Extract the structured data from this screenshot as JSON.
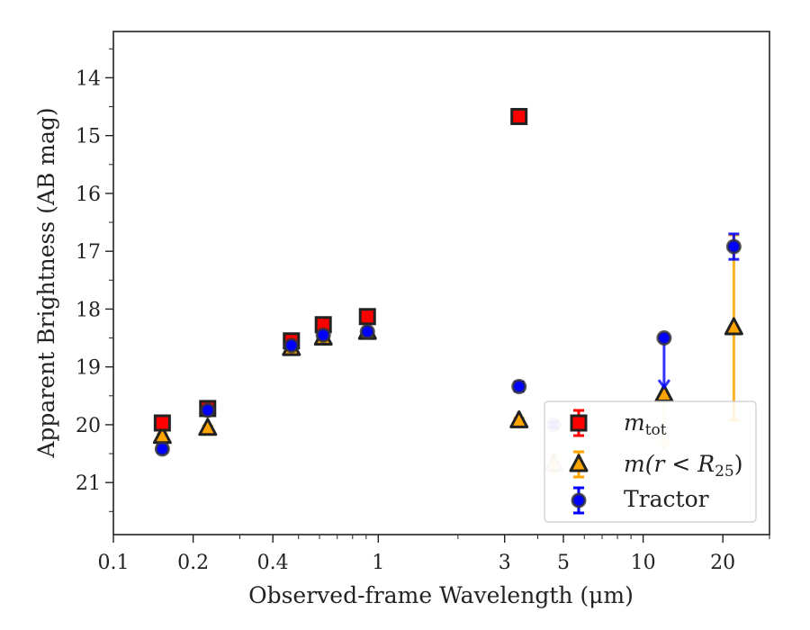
{
  "chart_data": {
    "type": "scatter",
    "title": "",
    "xlabel": "Observed-frame Wavelength (μm)",
    "ylabel": "Apparent Brightness (AB mag)",
    "xscale": "log",
    "xlim": [
      0.1,
      30
    ],
    "ylim": [
      21.9,
      13.2
    ],
    "y_inverted": true,
    "grid": false,
    "legend_position": "lower-right",
    "x_tick_labels": [
      "0.1",
      "0.2",
      "0.4",
      "1",
      "3",
      "5",
      "10",
      "20"
    ],
    "x_ticks": [
      0.1,
      0.2,
      0.4,
      1,
      3,
      5,
      10,
      20
    ],
    "y_tick_labels": [
      "14",
      "15",
      "16",
      "17",
      "18",
      "19",
      "20",
      "21"
    ],
    "y_ticks": [
      14,
      15,
      16,
      17,
      18,
      19,
      20,
      21
    ],
    "series": [
      {
        "name": "m_tot",
        "marker": "square",
        "color": "#ff0000",
        "edge_color": "#222222",
        "points": [
          {
            "x": 0.153,
            "y": 19.97,
            "yerr": 0.05
          },
          {
            "x": 0.227,
            "y": 19.72,
            "yerr": 0.05
          },
          {
            "x": 0.47,
            "y": 18.55,
            "yerr": 0.05
          },
          {
            "x": 0.62,
            "y": 18.27,
            "yerr": 0.05
          },
          {
            "x": 0.91,
            "y": 18.13,
            "yerr": 0.05
          },
          {
            "x": 3.4,
            "y": 14.67,
            "yerr": 0.03
          }
        ]
      },
      {
        "name": "m(r < R25)",
        "marker": "triangle",
        "color": "#ffa500",
        "edge_color": "#222222",
        "points": [
          {
            "x": 0.153,
            "y": 20.2,
            "yerr": 0.04
          },
          {
            "x": 0.227,
            "y": 20.06,
            "yerr": 0.04
          },
          {
            "x": 0.47,
            "y": 18.68,
            "yerr": 0.03
          },
          {
            "x": 0.62,
            "y": 18.5,
            "yerr": 0.03
          },
          {
            "x": 0.91,
            "y": 18.4,
            "yerr": 0.03
          },
          {
            "x": 3.4,
            "y": 19.93,
            "yerr": 0.04
          },
          {
            "x": 4.6,
            "y": 20.68,
            "yerr": 0.15,
            "faded": true
          },
          {
            "x": 12.0,
            "y": 19.48,
            "upper_limit": true,
            "arrow_to": 20.4,
            "faded_arrow": true
          },
          {
            "x": 22.0,
            "y": 18.32,
            "yerr_low": 1.6,
            "yerr_high": 1.6
          }
        ]
      },
      {
        "name": "Tractor",
        "marker": "circle",
        "color": "#0000ff",
        "edge_color": "#333333",
        "points": [
          {
            "x": 0.153,
            "y": 20.42,
            "yerr": 0.06
          },
          {
            "x": 0.227,
            "y": 19.75,
            "yerr": 0.04
          },
          {
            "x": 0.47,
            "y": 18.63,
            "yerr": 0.04
          },
          {
            "x": 0.62,
            "y": 18.45,
            "yerr": 0.04
          },
          {
            "x": 0.91,
            "y": 18.39,
            "yerr": 0.04
          },
          {
            "x": 3.4,
            "y": 19.34,
            "yerr": 0.08
          },
          {
            "x": 4.6,
            "y": 20.0,
            "yerr": 0.05,
            "faded": true
          },
          {
            "x": 12.0,
            "y": 18.5,
            "upper_limit": true,
            "arrow_to": 19.35
          },
          {
            "x": 22.0,
            "y": 16.92,
            "yerr_low": 0.22,
            "yerr_high": 0.22
          }
        ]
      }
    ]
  },
  "legend": {
    "entries": [
      {
        "label_base": "m",
        "label_sub": "tot",
        "label_rest": ""
      },
      {
        "label_base": "m",
        "label_sub": "",
        "label_rest": "(r < R",
        "label_sub2": "25",
        "label_close": ")"
      },
      {
        "label_base": "Tractor",
        "label_sub": "",
        "label_rest": ""
      }
    ]
  }
}
